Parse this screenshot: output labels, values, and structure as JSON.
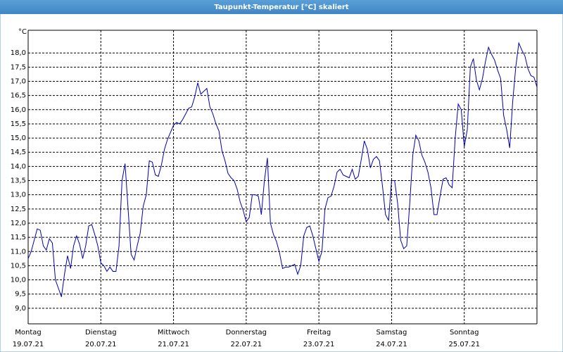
{
  "chart_data": {
    "type": "line",
    "title": "Taupunkt-Temperatur [°C] skaliert",
    "y_label": "°C",
    "color": "#0000b0",
    "grid": true,
    "xlim": [
      0,
      168
    ],
    "xticks": [
      {
        "value": 0,
        "label": "Montag",
        "date": "19.07.21"
      },
      {
        "value": 24,
        "label": "Dienstag",
        "date": "20.07.21"
      },
      {
        "value": 48,
        "label": "Mittwoch",
        "date": "21.07.21"
      },
      {
        "value": 72,
        "label": "Donnerstag",
        "date": "22.07.21"
      },
      {
        "value": 96,
        "label": "Freitag",
        "date": "23.07.21"
      },
      {
        "value": 120,
        "label": "Samstag",
        "date": "24.07.21"
      },
      {
        "value": 144,
        "label": "Sonntag",
        "date": "25.07.21"
      }
    ],
    "ylim": [
      8.45,
      18.8
    ],
    "yticks": [
      {
        "value": 9,
        "label": "9,0"
      },
      {
        "value": 9.5,
        "label": "9,5"
      },
      {
        "value": 10,
        "label": "10,0"
      },
      {
        "value": 10.5,
        "label": "10,5"
      },
      {
        "value": 11,
        "label": "11,0"
      },
      {
        "value": 11.5,
        "label": "11,5"
      },
      {
        "value": 12,
        "label": "12,0"
      },
      {
        "value": 12.5,
        "label": "12,5"
      },
      {
        "value": 13,
        "label": "13,0"
      },
      {
        "value": 13.5,
        "label": "13,5"
      },
      {
        "value": 14,
        "label": "14,0"
      },
      {
        "value": 14.5,
        "label": "14,5"
      },
      {
        "value": 15,
        "label": "15,0"
      },
      {
        "value": 15.5,
        "label": "15,5"
      },
      {
        "value": 16,
        "label": "16,0"
      },
      {
        "value": 16.5,
        "label": "16,5"
      },
      {
        "value": 17,
        "label": "17,0"
      },
      {
        "value": 17.5,
        "label": "17,5"
      },
      {
        "value": 18,
        "label": "18,0"
      }
    ],
    "x": [
      0,
      1,
      2,
      3,
      4,
      5,
      6,
      7,
      8,
      9,
      10,
      11,
      12,
      13,
      14,
      15,
      16,
      17,
      18,
      19,
      20,
      21,
      22,
      23,
      24,
      25,
      26,
      27,
      28,
      29,
      30,
      31,
      32,
      33,
      34,
      35,
      36,
      37,
      38,
      39,
      40,
      41,
      42,
      43,
      44,
      45,
      46,
      47,
      48,
      49,
      50,
      51,
      52,
      53,
      54,
      55,
      56,
      57,
      58,
      59,
      60,
      61,
      62,
      63,
      64,
      65,
      66,
      67,
      68,
      69,
      70,
      71,
      72,
      73,
      74,
      75,
      76,
      77,
      78,
      79,
      80,
      81,
      82,
      83,
      84,
      85,
      86,
      87,
      88,
      89,
      90,
      91,
      92,
      93,
      94,
      95,
      96,
      97,
      98,
      99,
      100,
      101,
      102,
      103,
      104,
      105,
      106,
      107,
      108,
      109,
      110,
      111,
      112,
      113,
      114,
      115,
      116,
      117,
      118,
      119,
      120,
      121,
      122,
      123,
      124,
      125,
      126,
      127,
      128,
      129,
      130,
      131,
      132,
      133,
      134,
      135,
      136,
      137,
      138,
      139,
      140,
      141,
      142,
      143,
      144,
      145,
      146,
      147,
      148,
      149,
      150,
      151,
      152,
      153,
      154,
      155,
      156,
      157,
      158,
      159,
      160,
      161,
      162,
      163,
      164,
      165,
      166,
      167,
      168
    ],
    "values": [
      10.75,
      11.0,
      11.4,
      11.8,
      11.75,
      11.2,
      11.05,
      11.45,
      11.3,
      10.0,
      9.7,
      9.4,
      10.2,
      10.85,
      10.4,
      11.2,
      11.55,
      11.25,
      10.75,
      11.2,
      11.9,
      11.95,
      11.6,
      11.2,
      10.6,
      10.5,
      10.3,
      10.45,
      10.3,
      10.3,
      11.2,
      13.5,
      14.1,
      12.5,
      10.9,
      10.7,
      11.2,
      11.65,
      12.6,
      13.0,
      14.2,
      14.15,
      13.7,
      13.65,
      14.05,
      14.6,
      14.95,
      15.2,
      15.45,
      15.55,
      15.5,
      15.65,
      15.85,
      16.05,
      16.1,
      16.45,
      16.95,
      16.55,
      16.65,
      16.75,
      16.1,
      15.85,
      15.5,
      15.25,
      14.55,
      14.2,
      13.75,
      13.6,
      13.5,
      13.2,
      12.75,
      12.45,
      12.05,
      12.2,
      13.0,
      13.0,
      12.95,
      12.3,
      13.5,
      14.3,
      12.0,
      11.6,
      11.35,
      10.95,
      10.4,
      10.45,
      10.45,
      10.5,
      10.55,
      10.2,
      10.5,
      11.55,
      11.85,
      11.9,
      11.55,
      11.1,
      10.65,
      11.0,
      12.5,
      12.9,
      12.95,
      13.3,
      13.8,
      13.9,
      13.7,
      13.65,
      13.6,
      13.9,
      13.55,
      13.65,
      14.25,
      14.9,
      14.6,
      13.95,
      14.25,
      14.35,
      14.2,
      13.3,
      12.3,
      12.1,
      13.5,
      13.5,
      12.7,
      11.4,
      11.1,
      11.2,
      12.7,
      14.4,
      15.1,
      14.9,
      14.4,
      14.15,
      13.8,
      13.25,
      12.3,
      12.3,
      12.95,
      13.55,
      13.6,
      13.35,
      13.25,
      15.0,
      16.2,
      16.0,
      14.7,
      15.3,
      17.5,
      17.8,
      17.05,
      16.7,
      17.1,
      17.7,
      18.2,
      17.95,
      17.75,
      17.4,
      17.1,
      15.8,
      15.3,
      14.65,
      16.3,
      17.5,
      18.35,
      18.1,
      17.9,
      17.45,
      17.2,
      17.15,
      16.8
    ]
  }
}
